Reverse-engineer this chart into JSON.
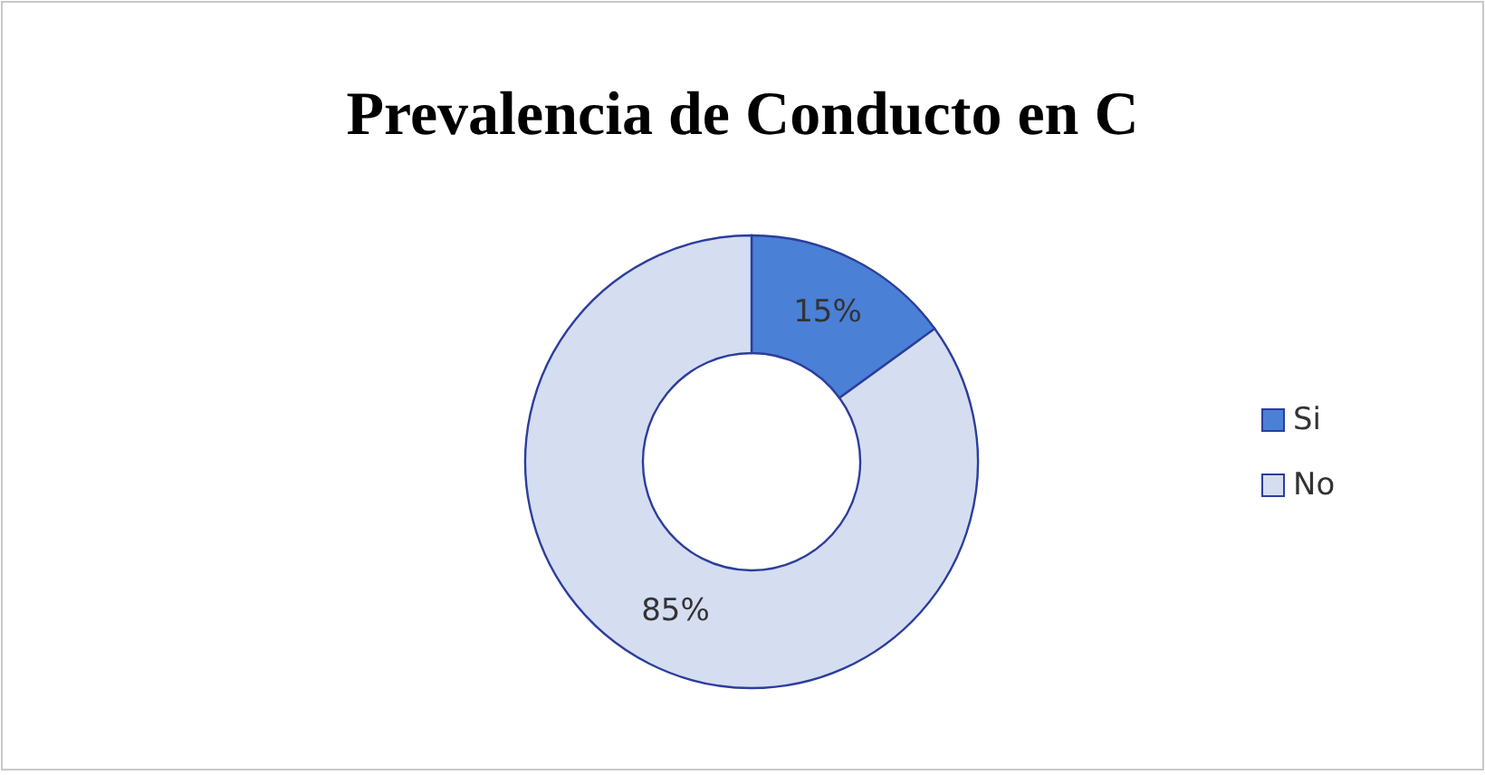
{
  "chart_data": {
    "type": "donut",
    "title": "Prevalencia de Conducto en C",
    "categories": [
      "Si",
      "No"
    ],
    "values": [
      15,
      85
    ],
    "colors": [
      "#4a80d6",
      "#d5ddf1"
    ],
    "value_labels": [
      "15%",
      "85%"
    ],
    "legend": "right"
  }
}
